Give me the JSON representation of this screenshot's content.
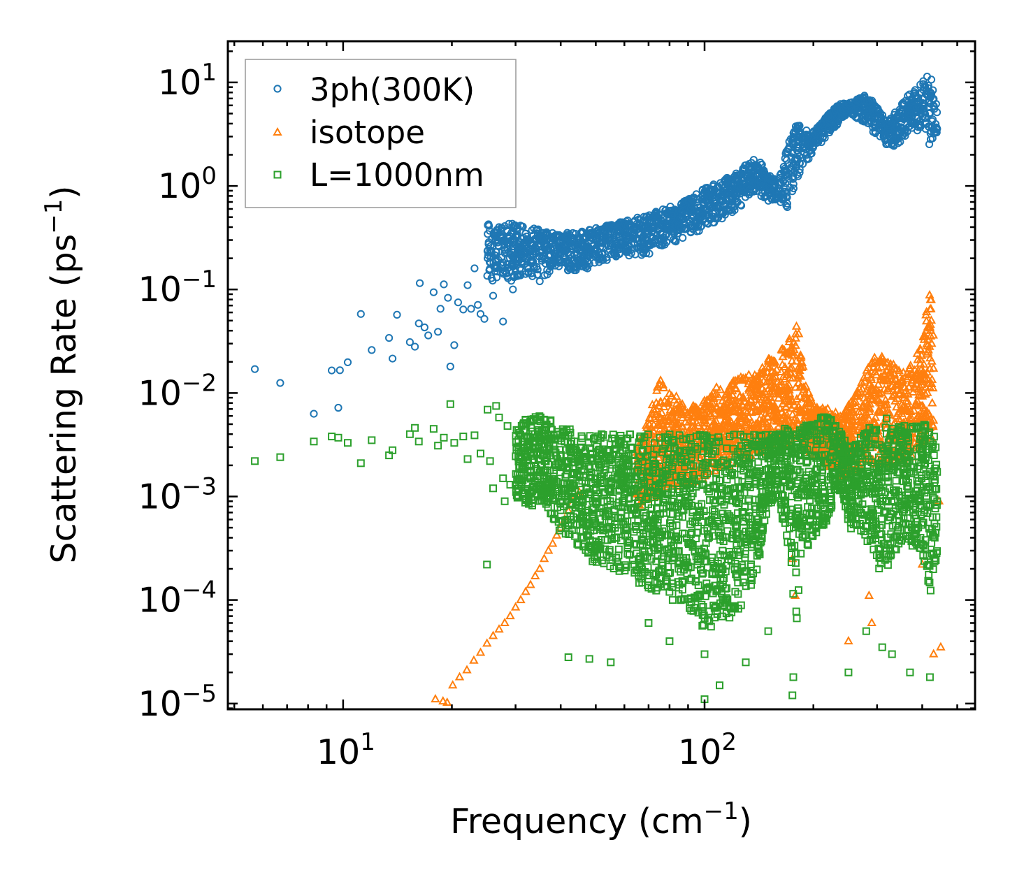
{
  "chart_data": {
    "type": "scatter",
    "xscale": "log",
    "yscale": "log",
    "xlim": [
      4.8,
      560
    ],
    "ylim": [
      8.8e-06,
      25
    ],
    "xlabel": {
      "base": "Frequency (cm",
      "exp": "−1",
      "close": ")"
    },
    "ylabel": {
      "base": "Scattering Rate (ps",
      "exp": "−1",
      "close": ")"
    },
    "xticks": [
      {
        "value": 10,
        "base": "10",
        "exp": "1"
      },
      {
        "value": 100,
        "base": "10",
        "exp": "2"
      }
    ],
    "yticks": [
      {
        "value": 10,
        "base": "10",
        "exp": "1"
      },
      {
        "value": 1,
        "base": "10",
        "exp": "0"
      },
      {
        "value": 0.1,
        "base": "10",
        "exp": "−1"
      },
      {
        "value": 0.01,
        "base": "10",
        "exp": "−2"
      },
      {
        "value": 0.001,
        "base": "10",
        "exp": "−3"
      },
      {
        "value": 0.0001,
        "base": "10",
        "exp": "−4"
      },
      {
        "value": 1e-05,
        "base": "10",
        "exp": "−5"
      }
    ],
    "legend_position": "top-left",
    "series": [
      {
        "name": "3ph(300K)",
        "marker": "circle",
        "color": "#1f77b4",
        "points": [
          [
            5.7,
            0.017
          ],
          [
            6.7,
            0.0125
          ],
          [
            8.3,
            0.0063
          ],
          [
            9.3,
            0.0165
          ],
          [
            9.7,
            0.0072
          ],
          [
            9.8,
            0.0166
          ],
          [
            10.3,
            0.0198
          ],
          [
            11.2,
            0.058
          ],
          [
            12.0,
            0.026
          ],
          [
            13.4,
            0.034
          ],
          [
            13.7,
            0.0215
          ],
          [
            14.1,
            0.057
          ],
          [
            15.3,
            0.031
          ],
          [
            15.8,
            0.028
          ],
          [
            16.2,
            0.047
          ],
          [
            16.3,
            0.115
          ],
          [
            16.8,
            0.043
          ],
          [
            17.2,
            0.036
          ],
          [
            17.8,
            0.094
          ],
          [
            18.3,
            0.039
          ],
          [
            18.6,
            0.065
          ],
          [
            19.0,
            0.112
          ],
          [
            19.5,
            0.083
          ],
          [
            19.8,
            0.018
          ],
          [
            20.3,
            0.029
          ],
          [
            20.8,
            0.075
          ],
          [
            21.5,
            0.064
          ],
          [
            22.1,
            0.11
          ],
          [
            22.6,
            0.065
          ],
          [
            23.1,
            0.16
          ],
          [
            23.6,
            0.071
          ],
          [
            24.0,
            0.058
          ],
          [
            24.6,
            0.052
          ],
          [
            25.1,
            0.2
          ],
          [
            25.5,
            0.24
          ],
          [
            26.0,
            0.087
          ],
          [
            26.5,
            0.3
          ],
          [
            27.0,
            0.4
          ],
          [
            27.7,
            0.049
          ],
          [
            28.0,
            0.15
          ],
          [
            28.5,
            0.37
          ],
          [
            29.0,
            0.22
          ],
          [
            29.5,
            0.1
          ],
          [
            30.0,
            0.33
          ],
          [
            31.0,
            0.14
          ],
          [
            32.0,
            0.27
          ],
          [
            33.0,
            0.19
          ],
          [
            34.0,
            0.31
          ],
          [
            35.0,
            0.12
          ]
        ],
        "segments": [
          [
            25.0,
            0.12,
            0.44
          ],
          [
            30.0,
            0.12,
            0.44
          ],
          [
            35.0,
            0.13,
            0.38
          ],
          [
            40.0,
            0.15,
            0.35
          ],
          [
            45.0,
            0.15,
            0.36
          ],
          [
            50.0,
            0.17,
            0.4
          ],
          [
            55.0,
            0.2,
            0.42
          ],
          [
            60.0,
            0.21,
            0.46
          ],
          [
            65.0,
            0.21,
            0.5
          ],
          [
            70.0,
            0.22,
            0.53
          ],
          [
            75.0,
            0.24,
            0.58
          ],
          [
            80.0,
            0.26,
            0.63
          ],
          [
            85.0,
            0.29,
            0.67
          ],
          [
            90.0,
            0.33,
            0.75
          ],
          [
            95.0,
            0.35,
            0.85
          ],
          [
            100.0,
            0.36,
            0.95
          ],
          [
            110.0,
            0.45,
            1.1
          ],
          [
            120.0,
            0.55,
            1.3
          ],
          [
            130.0,
            0.7,
            1.6
          ],
          [
            140.0,
            0.8,
            1.9
          ],
          [
            150.0,
            0.7,
            1.3
          ],
          [
            160.0,
            0.7,
            1.1
          ],
          [
            170.0,
            0.6,
            2.5
          ],
          [
            180.0,
            1.2,
            4.2
          ],
          [
            190.0,
            1.5,
            3.5
          ],
          [
            200.0,
            2.2,
            3.4
          ],
          [
            210.0,
            2.6,
            4.0
          ],
          [
            220.0,
            3.0,
            5.0
          ],
          [
            230.0,
            3.6,
            5.8
          ],
          [
            240.0,
            4.4,
            6.4
          ],
          [
            250.0,
            5.0,
            6.3
          ],
          [
            280.0,
            4.0,
            7.6
          ],
          [
            300.0,
            3.0,
            6.0
          ],
          [
            320.0,
            2.4,
            4.0
          ],
          [
            340.0,
            2.4,
            5.5
          ],
          [
            360.0,
            3.0,
            7.2
          ],
          [
            380.0,
            3.5,
            8.5
          ],
          [
            400.0,
            3.2,
            10.0
          ],
          [
            420.0,
            2.4,
            13.0
          ],
          [
            440.0,
            3.0,
            5.5
          ]
        ]
      },
      {
        "name": "isotope",
        "marker": "triangle",
        "color": "#ff7f0e",
        "points": [
          [
            18.0,
            1.1e-05
          ],
          [
            18.9,
            1.05e-05
          ],
          [
            19.4,
            1.02e-05
          ],
          [
            20.1,
            1.5e-05
          ],
          [
            21.0,
            1.8e-05
          ],
          [
            22.0,
            2.1e-05
          ],
          [
            23.0,
            2.6e-05
          ],
          [
            24.0,
            3.1e-05
          ],
          [
            25.0,
            3.8e-05
          ],
          [
            26.0,
            4.5e-05
          ],
          [
            27.0,
            5.2e-05
          ],
          [
            28.0,
            6e-05
          ],
          [
            29.0,
            7e-05
          ],
          [
            30.0,
            8.5e-05
          ],
          [
            31.0,
            0.0001
          ],
          [
            32.0,
            0.00012
          ],
          [
            33.0,
            0.00014
          ],
          [
            34.0,
            0.00017
          ],
          [
            35.0,
            0.0002
          ],
          [
            36.0,
            0.00025
          ],
          [
            37.0,
            0.0003
          ],
          [
            38.0,
            0.00035
          ],
          [
            39.0,
            0.00042
          ],
          [
            40.0,
            0.0005
          ],
          [
            41.0,
            0.0006
          ],
          [
            42.0,
            0.00072
          ],
          [
            43.0,
            0.00085
          ],
          [
            44.0,
            0.001
          ],
          [
            45.0,
            0.0011
          ],
          [
            175.0,
            0.00025
          ],
          [
            178.0,
            0.00011
          ],
          [
            250.0,
            4e-05
          ],
          [
            285.0,
            0.00011
          ],
          [
            290.0,
            6e-05
          ],
          [
            400.0,
            0.00022
          ],
          [
            430.0,
            3e-05
          ],
          [
            450.0,
            3.5e-05
          ],
          [
            445.0,
            0.0009
          ]
        ],
        "segments": [
          [
            65.0,
            0.0008,
            0.003
          ],
          [
            70.0,
            0.0009,
            0.006
          ],
          [
            75.0,
            0.001,
            0.014
          ],
          [
            80.0,
            0.0012,
            0.01
          ],
          [
            85.0,
            0.0012,
            0.009
          ],
          [
            90.0,
            0.0013,
            0.007
          ],
          [
            100.0,
            0.0015,
            0.009
          ],
          [
            110.0,
            0.0018,
            0.012
          ],
          [
            120.0,
            0.002,
            0.013
          ],
          [
            130.0,
            0.0022,
            0.015
          ],
          [
            140.0,
            0.0025,
            0.015
          ],
          [
            150.0,
            0.003,
            0.022
          ],
          [
            160.0,
            0.003,
            0.025
          ],
          [
            170.0,
            0.003,
            0.03
          ],
          [
            180.0,
            0.003,
            0.055
          ],
          [
            190.0,
            0.0025,
            0.012
          ],
          [
            200.0,
            0.0025,
            0.008
          ],
          [
            220.0,
            0.002,
            0.007
          ],
          [
            240.0,
            0.0015,
            0.006
          ],
          [
            300.0,
            0.002,
            0.025
          ],
          [
            330.0,
            0.002,
            0.02
          ],
          [
            360.0,
            0.002,
            0.015
          ],
          [
            400.0,
            0.003,
            0.03
          ],
          [
            420.0,
            0.004,
            0.12
          ],
          [
            430.0,
            0.003,
            0.05
          ]
        ]
      },
      {
        "name": "L=1000nm",
        "marker": "square",
        "color": "#2ca02c",
        "points": [
          [
            5.7,
            0.0022
          ],
          [
            6.7,
            0.0024
          ],
          [
            8.3,
            0.0034
          ],
          [
            9.3,
            0.0038
          ],
          [
            9.7,
            0.0037
          ],
          [
            10.3,
            0.0033
          ],
          [
            11.2,
            0.0021
          ],
          [
            12.0,
            0.0035
          ],
          [
            13.4,
            0.0025
          ],
          [
            13.7,
            0.0028
          ],
          [
            15.3,
            0.004
          ],
          [
            15.8,
            0.0046
          ],
          [
            16.2,
            0.0034
          ],
          [
            17.8,
            0.0045
          ],
          [
            18.3,
            0.0031
          ],
          [
            19.0,
            0.0037
          ],
          [
            19.8,
            0.0078
          ],
          [
            20.3,
            0.0033
          ],
          [
            21.5,
            0.0038
          ],
          [
            22.1,
            0.0023
          ],
          [
            23.1,
            0.0039
          ],
          [
            24.0,
            0.0026
          ],
          [
            25.1,
            0.0069
          ],
          [
            25.5,
            0.0022
          ],
          [
            26.0,
            0.0012
          ],
          [
            26.5,
            0.0075
          ],
          [
            27.0,
            0.0058
          ],
          [
            27.7,
            0.0015
          ],
          [
            28.0,
            0.0009
          ],
          [
            28.5,
            0.0048
          ],
          [
            29.0,
            0.0013
          ],
          [
            30.0,
            0.0013
          ],
          [
            25.0,
            0.00022
          ],
          [
            42.0,
            2.8e-05
          ],
          [
            48.0,
            2.7e-05
          ],
          [
            55.0,
            2.5e-05
          ],
          [
            70.0,
            6e-05
          ],
          [
            80.0,
            4e-05
          ],
          [
            100.0,
            1.1e-05
          ],
          [
            100.0,
            3e-05
          ],
          [
            110.0,
            1.5e-05
          ],
          [
            130.0,
            2.5e-05
          ],
          [
            150.0,
            5e-05
          ],
          [
            175.0,
            1.2e-05
          ],
          [
            176.0,
            1.8e-05
          ],
          [
            250.0,
            2e-05
          ],
          [
            280.0,
            5e-05
          ],
          [
            310.0,
            3.5e-05
          ],
          [
            330.0,
            3e-05
          ],
          [
            370.0,
            2e-05
          ],
          [
            420.0,
            1.8e-05
          ],
          [
            440.0,
            0.0009
          ]
        ],
        "segments": [
          [
            30.0,
            0.001,
            0.005
          ],
          [
            33.0,
            0.0008,
            0.006
          ],
          [
            36.0,
            0.0009,
            0.006
          ],
          [
            40.0,
            0.0004,
            0.005
          ],
          [
            43.0,
            0.0004,
            0.0045
          ],
          [
            46.0,
            0.0003,
            0.004
          ],
          [
            50.0,
            0.0002,
            0.004
          ],
          [
            55.0,
            0.0002,
            0.004
          ],
          [
            60.0,
            0.00015,
            0.004
          ],
          [
            65.0,
            0.00015,
            0.004
          ],
          [
            70.0,
            0.00012,
            0.004
          ],
          [
            75.0,
            0.00012,
            0.004
          ],
          [
            80.0,
            0.0001,
            0.004
          ],
          [
            85.0,
            0.0001,
            0.004
          ],
          [
            90.0,
            8e-05,
            0.004
          ],
          [
            95.0,
            7e-05,
            0.004
          ],
          [
            100.0,
            5e-05,
            0.004
          ],
          [
            110.0,
            6e-05,
            0.004
          ],
          [
            120.0,
            7e-05,
            0.004
          ],
          [
            130.0,
            0.0001,
            0.004
          ],
          [
            140.0,
            0.0002,
            0.004
          ],
          [
            150.0,
            0.0008,
            0.004
          ],
          [
            160.0,
            0.001,
            0.004
          ],
          [
            170.0,
            0.0003,
            0.005
          ],
          [
            180.0,
            5e-05,
            0.005
          ],
          [
            185.0,
            0.0003,
            0.005
          ],
          [
            190.0,
            0.0003,
            0.005
          ],
          [
            200.0,
            0.0004,
            0.005
          ],
          [
            210.0,
            0.0005,
            0.006
          ],
          [
            220.0,
            0.0006,
            0.006
          ],
          [
            230.0,
            0.001,
            0.005
          ],
          [
            240.0,
            0.0012,
            0.004
          ],
          [
            250.0,
            0.0005,
            0.003
          ],
          [
            290.0,
            0.0003,
            0.005
          ],
          [
            300.0,
            0.0002,
            0.005
          ],
          [
            320.0,
            0.0002,
            0.006
          ],
          [
            340.0,
            0.0003,
            0.005
          ],
          [
            360.0,
            0.0004,
            0.005
          ],
          [
            380.0,
            0.0003,
            0.005
          ],
          [
            400.0,
            0.0003,
            0.005
          ],
          [
            420.0,
            0.0001,
            0.006
          ],
          [
            440.0,
            0.0003,
            0.003
          ]
        ]
      }
    ]
  }
}
